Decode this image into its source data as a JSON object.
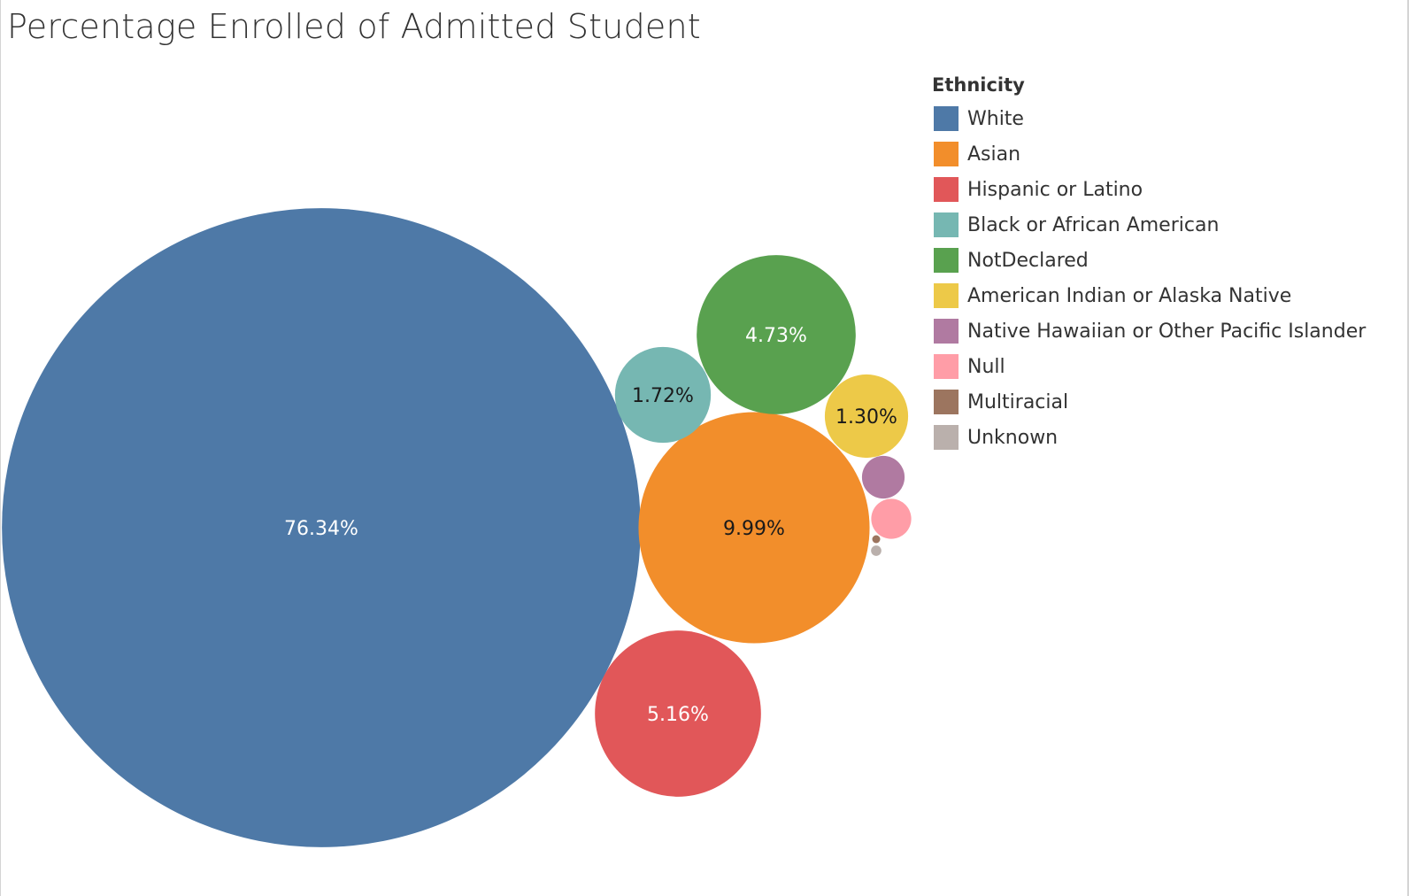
{
  "title": "Percentage Enrolled of Admitted Student",
  "chart_data": {
    "type": "bubble",
    "title": "Percentage Enrolled of Admitted Student",
    "legend_title": "Ethnicity",
    "legend_position": "top-right",
    "series": [
      {
        "name": "White",
        "value": 76.34,
        "label": "76.34%",
        "color": "#4e79a7",
        "label_color": "#ffffff"
      },
      {
        "name": "Asian",
        "value": 9.99,
        "label": "9.99%",
        "color": "#f28e2b",
        "label_color": "#1a1a1a"
      },
      {
        "name": "Hispanic or Latino",
        "value": 5.16,
        "label": "5.16%",
        "color": "#e15759",
        "label_color": "#ffffff"
      },
      {
        "name": "Black or African American",
        "value": 1.72,
        "label": "1.72%",
        "color": "#76b7b2",
        "label_color": "#1a1a1a"
      },
      {
        "name": "NotDeclared",
        "value": 4.73,
        "label": "4.73%",
        "color": "#59a14f",
        "label_color": "#ffffff"
      },
      {
        "name": "American Indian or Alaska Native",
        "value": 1.3,
        "label": "1.30%",
        "color": "#edc948",
        "label_color": "#1a1a1a"
      },
      {
        "name": "Native Hawaiian or Other Pacific Islander",
        "value": 0.34,
        "label": "",
        "color": "#b07aa1",
        "label_color": "#ffffff"
      },
      {
        "name": "Null",
        "value": 0.3,
        "label": "",
        "color": "#ff9da7",
        "label_color": "#ffffff"
      },
      {
        "name": "Multiracial",
        "value": 0.01,
        "label": "",
        "color": "#9c755f",
        "label_color": "#ffffff"
      },
      {
        "name": "Unknown",
        "value": 0.02,
        "label": "",
        "color": "#bab0ac",
        "label_color": "#ffffff"
      }
    ]
  }
}
